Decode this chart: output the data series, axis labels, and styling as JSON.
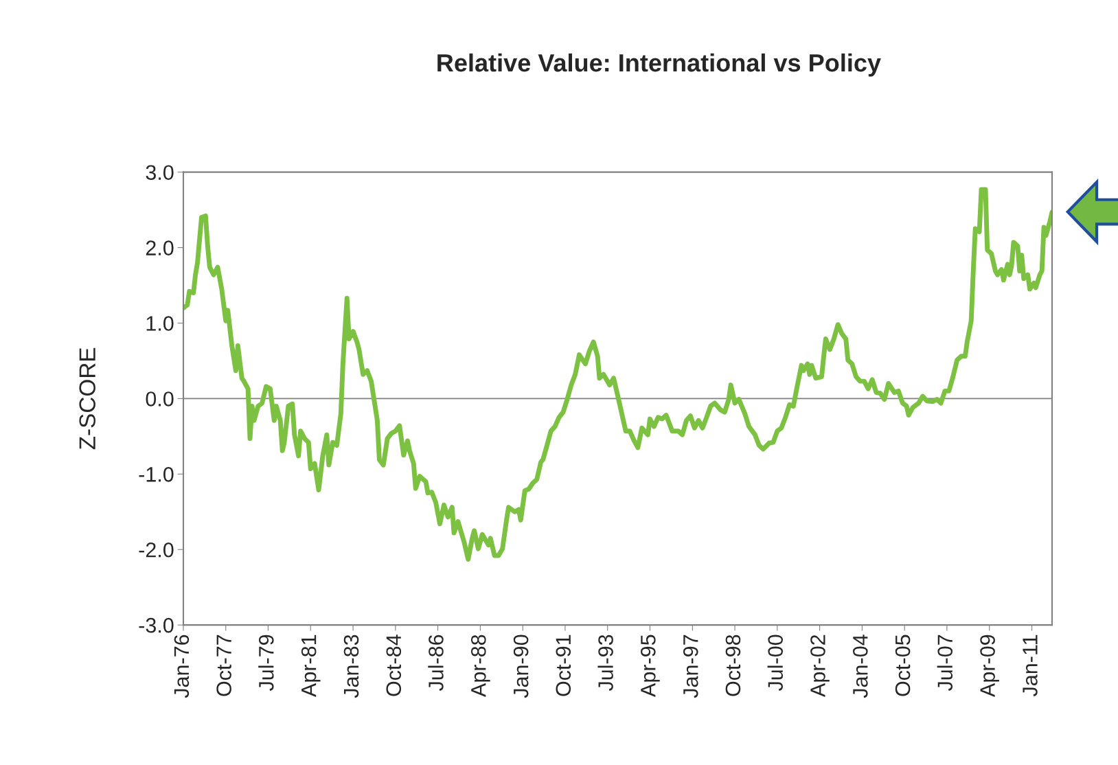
{
  "chart_data": {
    "type": "line",
    "title": "Relative Value: International vs Policy",
    "ylabel": "Z-SCORE",
    "x": [
      "1976-01",
      "1976-03",
      "1976-04",
      "1976-06",
      "1976-07",
      "1976-08",
      "1976-10",
      "1976-12",
      "1977-01",
      "1977-02",
      "1977-04",
      "1977-06",
      "1977-08",
      "1977-10",
      "1977-11",
      "1978-01",
      "1978-03",
      "1978-04",
      "1978-06",
      "1978-07",
      "1978-09",
      "1978-10",
      "1978-11",
      "1978-12",
      "1979-02",
      "1979-04",
      "1979-06",
      "1979-08",
      "1979-10",
      "1979-11",
      "1980-01",
      "1980-02",
      "1980-03",
      "1980-05",
      "1980-07",
      "1980-08",
      "1980-10",
      "1980-11",
      "1981-01",
      "1981-03",
      "1981-04",
      "1981-06",
      "1981-08",
      "1981-10",
      "1981-12",
      "1982-01",
      "1982-03",
      "1982-05",
      "1982-07",
      "1982-08",
      "1982-10",
      "1982-11",
      "1983-01",
      "1983-03",
      "1983-04",
      "1983-06",
      "1983-08",
      "1983-10",
      "1984-01",
      "1984-02",
      "1984-04",
      "1984-06",
      "1984-08",
      "1984-10",
      "1984-12",
      "1985-02",
      "1985-04",
      "1985-05",
      "1985-07",
      "1985-08",
      "1985-10",
      "1986-01",
      "1986-02",
      "1986-04",
      "1986-06",
      "1986-08",
      "1986-10",
      "1986-12",
      "1987-02",
      "1987-03",
      "1987-05",
      "1987-08",
      "1987-10",
      "1987-12",
      "1988-01",
      "1988-03",
      "1988-05",
      "1988-08",
      "1988-09",
      "1988-11",
      "1989-01",
      "1989-03",
      "1989-05",
      "1989-06",
      "1989-09",
      "1989-11",
      "1989-12",
      "1990-02",
      "1990-04",
      "1990-06",
      "1990-08",
      "1990-10",
      "1990-11",
      "1991-01",
      "1991-03",
      "1991-05",
      "1991-07",
      "1991-09",
      "1991-11",
      "1992-01",
      "1992-03",
      "1992-05",
      "1992-08",
      "1992-10",
      "1992-12",
      "1993-02",
      "1993-03",
      "1993-05",
      "1993-08",
      "1993-10",
      "1993-12",
      "1994-02",
      "1994-04",
      "1994-06",
      "1994-08",
      "1994-10",
      "1994-12",
      "1995-03",
      "1995-04",
      "1995-06",
      "1995-08",
      "1995-10",
      "1995-12",
      "1996-03",
      "1996-06",
      "1996-08",
      "1996-10",
      "1996-12",
      "1997-02",
      "1997-04",
      "1997-06",
      "1997-08",
      "1997-10",
      "1997-12",
      "1998-03",
      "1998-05",
      "1998-07",
      "1998-08",
      "1998-10",
      "1998-12",
      "1999-03",
      "1999-05",
      "1999-08",
      "1999-10",
      "1999-12",
      "2000-03",
      "2000-05",
      "2000-07",
      "2000-09",
      "2000-11",
      "2001-01",
      "2001-03",
      "2001-05",
      "2001-07",
      "2001-08",
      "2001-10",
      "2001-11",
      "2001-12",
      "2002-02",
      "2002-05",
      "2002-06",
      "2002-07",
      "2002-09",
      "2002-11",
      "2003-01",
      "2003-03",
      "2003-05",
      "2003-06",
      "2003-08",
      "2003-10",
      "2003-12",
      "2004-02",
      "2004-04",
      "2004-06",
      "2004-08",
      "2004-10",
      "2004-12",
      "2005-02",
      "2005-05",
      "2005-07",
      "2005-09",
      "2005-11",
      "2005-12",
      "2006-02",
      "2006-05",
      "2006-07",
      "2006-09",
      "2006-12",
      "2007-02",
      "2007-04",
      "2007-06",
      "2007-08",
      "2007-10",
      "2007-12",
      "2008-02",
      "2008-04",
      "2008-05",
      "2008-07",
      "2008-08",
      "2008-09",
      "2008-11",
      "2008-12",
      "2009-02",
      "2009-03",
      "2009-05",
      "2009-07",
      "2009-08",
      "2009-10",
      "2009-11",
      "2010-01",
      "2010-02",
      "2010-03",
      "2010-04",
      "2010-06",
      "2010-07",
      "2010-08",
      "2010-09",
      "2010-11",
      "2010-12",
      "2011-02",
      "2011-03",
      "2011-05",
      "2011-06",
      "2011-07",
      "2011-08",
      "2011-10",
      "2011-11"
    ],
    "series": [
      {
        "color": "#7dc142",
        "values": [
          1.2,
          1.24,
          1.42,
          1.4,
          1.64,
          1.8,
          2.4,
          2.42,
          2.02,
          1.74,
          1.64,
          1.74,
          1.45,
          1.03,
          1.17,
          0.7,
          0.37,
          0.7,
          0.27,
          0.23,
          0.13,
          -0.53,
          -0.1,
          -0.29,
          -0.1,
          -0.06,
          0.16,
          0.13,
          -0.29,
          -0.1,
          -0.29,
          -0.69,
          -0.58,
          -0.1,
          -0.07,
          -0.48,
          -0.76,
          -0.43,
          -0.53,
          -0.58,
          -0.93,
          -0.86,
          -1.21,
          -0.76,
          -0.48,
          -0.88,
          -0.58,
          -0.62,
          -0.2,
          0.46,
          1.33,
          0.79,
          0.89,
          0.75,
          0.65,
          0.32,
          0.37,
          0.23,
          -0.29,
          -0.81,
          -0.88,
          -0.53,
          -0.46,
          -0.43,
          -0.36,
          -0.75,
          -0.56,
          -0.69,
          -0.86,
          -1.19,
          -1.03,
          -1.1,
          -1.25,
          -1.24,
          -1.38,
          -1.66,
          -1.41,
          -1.57,
          -1.44,
          -1.78,
          -1.63,
          -1.9,
          -2.13,
          -1.85,
          -1.75,
          -1.99,
          -1.8,
          -1.94,
          -1.85,
          -2.08,
          -2.08,
          -1.99,
          -1.61,
          -1.44,
          -1.5,
          -1.47,
          -1.61,
          -1.22,
          -1.2,
          -1.12,
          -1.07,
          -0.84,
          -0.81,
          -0.62,
          -0.43,
          -0.37,
          -0.25,
          -0.18,
          -0.01,
          0.18,
          0.32,
          0.58,
          0.46,
          0.63,
          0.75,
          0.56,
          0.27,
          0.32,
          0.18,
          0.27,
          0.04,
          -0.2,
          -0.43,
          -0.43,
          -0.55,
          -0.65,
          -0.39,
          -0.48,
          -0.27,
          -0.37,
          -0.25,
          -0.27,
          -0.22,
          -0.43,
          -0.43,
          -0.48,
          -0.29,
          -0.23,
          -0.39,
          -0.29,
          -0.39,
          -0.25,
          -0.1,
          -0.06,
          -0.15,
          -0.18,
          -0.01,
          0.18,
          -0.06,
          -0.01,
          -0.2,
          -0.37,
          -0.48,
          -0.62,
          -0.67,
          -0.59,
          -0.58,
          -0.43,
          -0.39,
          -0.25,
          -0.08,
          -0.1,
          0.18,
          0.44,
          0.37,
          0.46,
          0.32,
          0.44,
          0.27,
          0.29,
          0.56,
          0.79,
          0.65,
          0.79,
          0.98,
          0.86,
          0.79,
          0.51,
          0.46,
          0.29,
          0.23,
          0.23,
          0.13,
          0.25,
          0.08,
          0.07,
          -0.01,
          0.2,
          0.08,
          0.1,
          -0.06,
          -0.1,
          -0.22,
          -0.12,
          -0.06,
          0.03,
          -0.03,
          -0.04,
          -0.01,
          -0.06,
          0.1,
          0.1,
          0.29,
          0.51,
          0.56,
          0.56,
          0.75,
          1.03,
          1.69,
          2.25,
          2.21,
          2.77,
          2.77,
          1.97,
          1.92,
          1.69,
          1.64,
          1.71,
          1.57,
          1.78,
          1.64,
          1.76,
          2.07,
          2.02,
          1.69,
          1.9,
          1.59,
          1.64,
          1.45,
          1.53,
          1.47,
          1.64,
          1.69,
          2.27,
          2.16,
          2.35,
          2.47
        ]
      }
    ],
    "xlim": [
      "1976-01",
      "2011-11"
    ],
    "xticks": [
      {
        "value": "1976-01",
        "label": "Jan-76"
      },
      {
        "value": "1977-10",
        "label": "Oct-77"
      },
      {
        "value": "1979-07",
        "label": "Jul-79"
      },
      {
        "value": "1981-04",
        "label": "Apr-81"
      },
      {
        "value": "1983-01",
        "label": "Jan-83"
      },
      {
        "value": "1984-10",
        "label": "Oct-84"
      },
      {
        "value": "1986-07",
        "label": "Jul-86"
      },
      {
        "value": "1988-04",
        "label": "Apr-88"
      },
      {
        "value": "1990-01",
        "label": "Jan-90"
      },
      {
        "value": "1991-10",
        "label": "Oct-91"
      },
      {
        "value": "1993-07",
        "label": "Jul-93"
      },
      {
        "value": "1995-04",
        "label": "Apr-95"
      },
      {
        "value": "1997-01",
        "label": "Jan-97"
      },
      {
        "value": "1998-10",
        "label": "Oct-98"
      },
      {
        "value": "2000-07",
        "label": "Jul-00"
      },
      {
        "value": "2002-04",
        "label": "Apr-02"
      },
      {
        "value": "2004-01",
        "label": "Jan-04"
      },
      {
        "value": "2005-10",
        "label": "Oct-05"
      },
      {
        "value": "2007-07",
        "label": "Jul-07"
      },
      {
        "value": "2009-04",
        "label": "Apr-09"
      },
      {
        "value": "2011-01",
        "label": "Jan-11"
      }
    ],
    "ylim": [
      -3,
      3
    ],
    "yticks": [
      {
        "value": -3,
        "label": "-3.0"
      },
      {
        "value": -2,
        "label": "-2.0"
      },
      {
        "value": -1,
        "label": "-1.0"
      },
      {
        "value": 0,
        "label": "0.0"
      },
      {
        "value": 1,
        "label": "1.0"
      },
      {
        "value": 2,
        "label": "2.0"
      },
      {
        "value": 3,
        "label": "3.0"
      }
    ],
    "ref_lines": [
      {
        "axis": "y",
        "value": 0,
        "color": "#808080"
      }
    ],
    "grid": false,
    "legend": false,
    "marker": "none",
    "line_style": "solid"
  }
}
